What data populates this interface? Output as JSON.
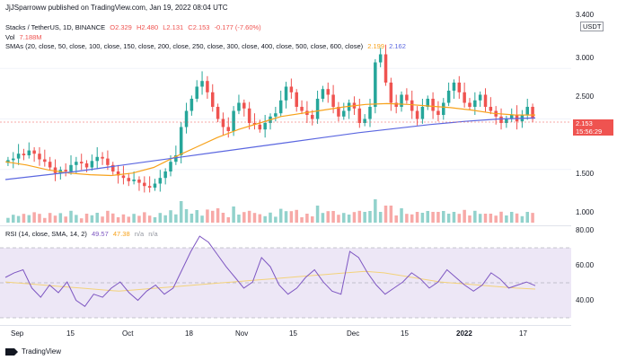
{
  "header": {
    "publish_line": "JjJSparroww published on TradingView.com, Jan 19, 2022 08:04 UTC"
  },
  "legend": {
    "symbol": "Stacks / TetherUS, 1D, BINANCE",
    "o": "O2.329",
    "h": "H2.480",
    "l": "L2.131",
    "c": "C2.153",
    "change": "-0.177 (-7.60%)",
    "vol_label": "Vol",
    "vol_value": "7.188M",
    "sma_label": "SMAs (20, close, 50, close, 100, close, 150, close, 200, close, 250, close, 300, close, 400, close, 500, close, 600, close)",
    "sma_val1": "2.199",
    "sma_val2": "2.162"
  },
  "rsi": {
    "label": "RSI (14, close, SMA, 14, 2)",
    "v1": "49.57",
    "v2": "47.38",
    "v3": "n/a",
    "v4": "n/a"
  },
  "price_axis": {
    "currency": "USDT",
    "ticks": [
      "3.400",
      "3.000",
      "2.500",
      "1.500",
      "1.000"
    ],
    "last_price": "2.153",
    "countdown": "15:56:29"
  },
  "rsi_axis": {
    "ticks": [
      "80.00",
      "60.00",
      "40.00"
    ]
  },
  "time_axis": [
    "Sep",
    "15",
    "Oct",
    "18",
    "Nov",
    "15",
    "Dec",
    "15",
    "2022",
    "17"
  ],
  "footer": {
    "brand": "TradingView"
  },
  "colors": {
    "up": "#26a69a",
    "down": "#ef5350",
    "sma_fast": "#f7a21b",
    "sma_slow": "#5b67e0",
    "rsi_line": "#7e57c2",
    "rsi_band": "#ede7f6"
  },
  "chart_data": {
    "type": "candlestick",
    "x": [
      "Sep",
      "15",
      "Oct",
      "18",
      "Nov",
      "15",
      "Dec",
      "15",
      "2022",
      "17"
    ],
    "ohlc_close_series": [
      1.64,
      1.66,
      1.72,
      1.7,
      1.76,
      1.72,
      1.65,
      1.62,
      1.55,
      1.48,
      1.52,
      1.5,
      1.58,
      1.62,
      1.6,
      1.55,
      1.63,
      1.68,
      1.66,
      1.58,
      1.5,
      1.45,
      1.42,
      1.38,
      1.4,
      1.36,
      1.32,
      1.3,
      1.35,
      1.42,
      1.5,
      1.62,
      1.7,
      2.05,
      2.25,
      2.4,
      2.55,
      2.62,
      2.48,
      2.3,
      2.15,
      2.05,
      2.0,
      2.25,
      2.35,
      2.28,
      2.1,
      2.08,
      2.02,
      2.1,
      2.18,
      2.22,
      2.38,
      2.55,
      2.48,
      2.3,
      2.25,
      2.2,
      2.15,
      2.4,
      2.52,
      2.45,
      2.3,
      2.18,
      2.25,
      2.35,
      2.28,
      2.1,
      2.15,
      2.3,
      2.85,
      2.95,
      2.6,
      2.35,
      2.3,
      2.45,
      2.38,
      2.25,
      2.15,
      2.3,
      2.4,
      2.25,
      2.2,
      2.35,
      2.5,
      2.6,
      2.48,
      2.35,
      2.3,
      2.38,
      2.45,
      2.3,
      2.25,
      2.18,
      2.1,
      2.15,
      2.2,
      2.12,
      2.2,
      2.3,
      2.153
    ],
    "sma_fast": [
      1.62,
      1.58,
      1.52,
      1.48,
      1.46,
      1.45,
      1.48,
      1.55,
      1.68,
      1.8,
      1.92,
      2.02,
      2.1,
      2.18,
      2.22,
      2.26,
      2.3,
      2.33,
      2.34,
      2.33,
      2.31,
      2.29,
      2.26,
      2.22,
      2.2,
      2.199
    ],
    "sma_slow": [
      1.4,
      1.45,
      1.5,
      1.56,
      1.62,
      1.68,
      1.74,
      1.8,
      1.86,
      1.92,
      1.98,
      2.03,
      2.08,
      2.12,
      2.15,
      2.162
    ],
    "rsi": [
      55,
      58,
      60,
      48,
      42,
      50,
      45,
      52,
      40,
      36,
      44,
      42,
      48,
      52,
      45,
      40,
      46,
      50,
      44,
      48,
      60,
      72,
      82,
      78,
      70,
      62,
      55,
      48,
      52,
      68,
      62,
      50,
      44,
      48,
      55,
      60,
      52,
      46,
      44,
      72,
      68,
      58,
      50,
      44,
      48,
      52,
      58,
      54,
      48,
      52,
      60,
      55,
      50,
      46,
      50,
      58,
      54,
      48,
      50,
      52,
      49.57
    ],
    "rsi_sma": [
      52,
      51,
      50,
      49,
      48,
      47,
      46,
      47,
      48,
      49,
      50,
      51,
      52,
      53,
      54,
      55,
      56,
      57,
      58,
      59,
      58,
      56,
      54,
      52,
      51,
      50,
      49,
      48,
      47.38
    ],
    "ylim": [
      0.9,
      3.4
    ],
    "rsi_ylim": [
      25,
      85
    ]
  }
}
